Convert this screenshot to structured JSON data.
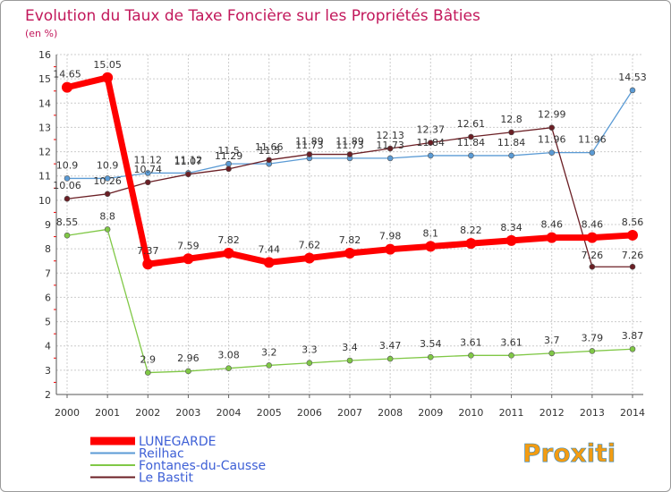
{
  "chart_data": {
    "type": "line",
    "title": "Evolution du Taux de Taxe Foncière sur les Propriétés Bâties",
    "ylabel": "(en %)",
    "xlabel": "",
    "ylim": [
      2,
      16
    ],
    "yticks": [
      "2",
      "3",
      "4",
      "5",
      "6",
      "7",
      "8",
      "9",
      "10",
      "11",
      "12",
      "13",
      "14",
      "15",
      "16"
    ],
    "categories": [
      "2000",
      "2001",
      "2002",
      "2003",
      "2004",
      "2005",
      "2006",
      "2007",
      "2008",
      "2009",
      "2010",
      "2011",
      "2012",
      "2013",
      "2014"
    ],
    "grid": true,
    "legend_position": "bottom-left",
    "series": [
      {
        "name": "LUNEGARDE",
        "color": "#ff0000",
        "values": [
          14.65,
          15.05,
          7.37,
          7.59,
          7.82,
          7.44,
          7.62,
          7.82,
          7.98,
          8.1,
          8.22,
          8.34,
          8.46,
          8.46,
          8.56
        ],
        "labels": [
          "14.65",
          "15.05",
          "7.37",
          "7.59",
          "7.82",
          "7.44",
          "7.62",
          "7.82",
          "7.98",
          "8.1",
          "8.22",
          "8.34",
          "8.46",
          "8.46",
          "8.56"
        ]
      },
      {
        "name": "Reilhac",
        "color": "#5b9bd5",
        "values": [
          10.9,
          10.9,
          11.12,
          11.12,
          11.5,
          11.5,
          11.73,
          11.73,
          11.73,
          11.84,
          11.84,
          11.84,
          11.96,
          11.96,
          14.53
        ],
        "labels": [
          "10.9",
          "10.9",
          "11.12",
          "11.12",
          "11.5",
          "11.5",
          "11.73",
          "11.73",
          "11.73",
          "11.84",
          "11.84",
          "11.84",
          "11.96",
          "11.96",
          "14.53"
        ]
      },
      {
        "name": "Fontanes-du-Causse",
        "color": "#80c846",
        "values": [
          8.55,
          8.8,
          2.9,
          2.96,
          3.08,
          3.2,
          3.3,
          3.4,
          3.47,
          3.54,
          3.61,
          3.61,
          3.7,
          3.79,
          3.87
        ],
        "labels": [
          "8.55",
          "8.8",
          "2.9",
          "2.96",
          "3.08",
          "3.2",
          "3.3",
          "3.4",
          "3.47",
          "3.54",
          "3.61",
          "3.61",
          "3.7",
          "3.79",
          "3.87"
        ]
      },
      {
        "name": "Le Bastit",
        "color": "#6b1f25",
        "values": [
          10.06,
          10.26,
          10.74,
          11.07,
          11.29,
          11.66,
          11.89,
          11.89,
          12.13,
          12.37,
          12.61,
          12.8,
          12.99,
          7.26,
          7.26
        ],
        "labels": [
          "10.06",
          "10.26",
          "10.74",
          "11.07",
          "11.29",
          "11.66",
          "11.89",
          "11.89",
          "12.13",
          "12.37",
          "12.61",
          "12.8",
          "12.99",
          "7.26",
          "7.26"
        ]
      }
    ]
  },
  "logo": {
    "text": "Proxiti"
  },
  "colors": {
    "title": "#c2185b",
    "grid": "#c8c8c8",
    "tick_red": "#ff0000"
  }
}
